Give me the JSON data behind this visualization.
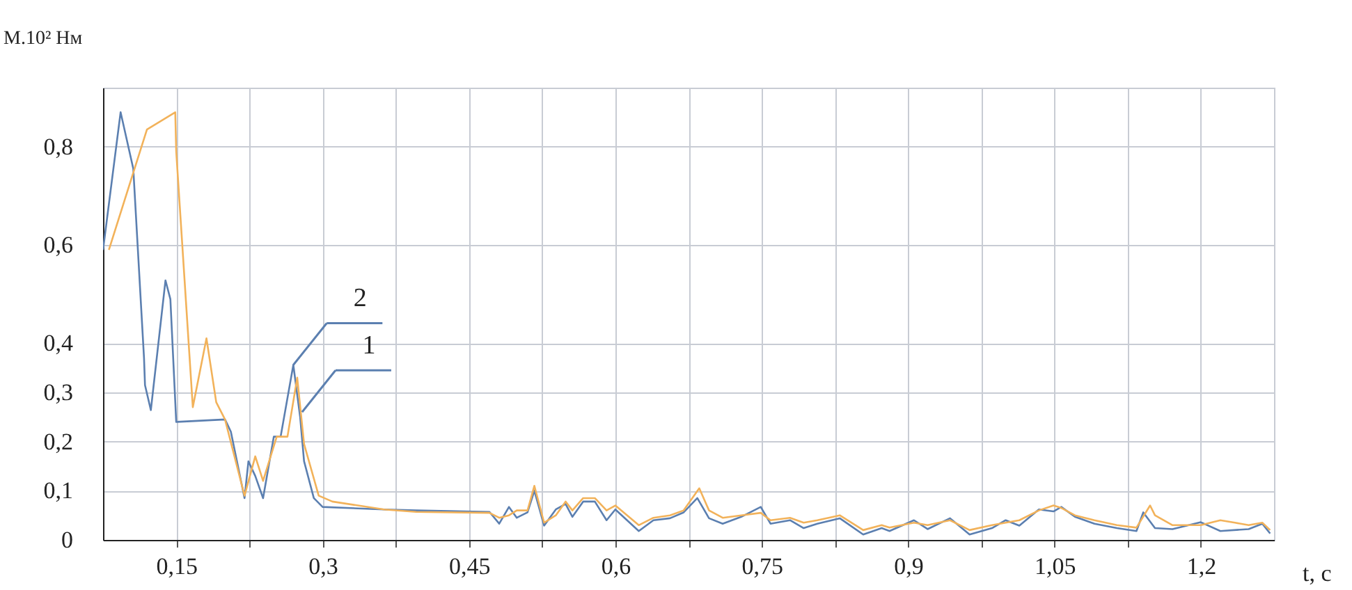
{
  "chart_data": {
    "type": "line",
    "xlabel": "t, c",
    "ylabel": "M.10² Нм",
    "xlim": [
      0.075,
      1.275
    ],
    "ylim": [
      0,
      0.92
    ],
    "xticks": [
      {
        "value": 0.15,
        "label": "0,15"
      },
      {
        "value": 0.225,
        "label": null
      },
      {
        "value": 0.3,
        "label": "0,3"
      },
      {
        "value": 0.375,
        "label": null
      },
      {
        "value": 0.45,
        "label": "0,45"
      },
      {
        "value": 0.525,
        "label": null
      },
      {
        "value": 0.6,
        "label": "0,6"
      },
      {
        "value": 0.675,
        "label": null
      },
      {
        "value": 0.75,
        "label": "0,75"
      },
      {
        "value": 0.825,
        "label": null
      },
      {
        "value": 0.9,
        "label": "0,9"
      },
      {
        "value": 0.975,
        "label": null
      },
      {
        "value": 1.05,
        "label": "1,05"
      },
      {
        "value": 1.125,
        "label": null
      },
      {
        "value": 1.2,
        "label": "1,2"
      }
    ],
    "yticks": [
      0,
      {
        "value": 0.1,
        "label": "0,1"
      },
      {
        "value": 0.2,
        "label": "0,2"
      },
      {
        "value": 0.3,
        "label": "0,3"
      },
      {
        "value": 0.4,
        "label": "0,4"
      },
      {
        "value": 0.6,
        "label": "0,6"
      },
      {
        "value": 0.8,
        "label": "0,8"
      }
    ],
    "grid": true,
    "line_style": "solid",
    "annotations": [
      {
        "text": "2",
        "x": 0.27,
        "y": 0.356
      },
      {
        "text": "1",
        "x": 0.279,
        "y": 0.26
      }
    ],
    "series": [
      {
        "color": "#5b7fb0",
        "x": [
          0.075,
          0.093,
          0.106,
          0.117,
          0.118,
          0.124,
          0.139,
          0.144,
          0.15,
          0.2,
          0.206,
          0.22,
          0.224,
          0.231,
          0.239,
          0.25,
          0.257,
          0.27,
          0.277,
          0.281,
          0.291,
          0.3,
          0.363,
          0.396,
          0.471,
          0.481,
          0.491,
          0.499,
          0.51,
          0.517,
          0.527,
          0.539,
          0.549,
          0.556,
          0.567,
          0.579,
          0.591,
          0.6,
          0.624,
          0.639,
          0.656,
          0.67,
          0.684,
          0.696,
          0.71,
          0.729,
          0.749,
          0.759,
          0.779,
          0.793,
          0.807,
          0.83,
          0.854,
          0.873,
          0.881,
          0.906,
          0.92,
          0.943,
          0.963,
          0.986,
          1.0,
          1.014,
          1.034,
          1.049,
          1.057,
          1.071,
          1.091,
          1.114,
          1.134,
          1.141,
          1.153,
          1.171,
          1.2,
          1.22,
          1.249,
          1.263,
          1.271
        ],
        "values": [
          0.59,
          0.87,
          0.755,
          0.37,
          0.315,
          0.264,
          0.528,
          0.49,
          0.24,
          0.245,
          0.22,
          0.085,
          0.16,
          0.13,
          0.085,
          0.21,
          0.21,
          0.356,
          0.25,
          0.16,
          0.085,
          0.067,
          0.062,
          0.06,
          0.057,
          0.033,
          0.067,
          0.045,
          0.056,
          0.1,
          0.029,
          0.062,
          0.073,
          0.047,
          0.078,
          0.078,
          0.04,
          0.062,
          0.018,
          0.04,
          0.044,
          0.056,
          0.085,
          0.044,
          0.033,
          0.047,
          0.067,
          0.033,
          0.04,
          0.024,
          0.033,
          0.044,
          0.011,
          0.024,
          0.018,
          0.04,
          0.022,
          0.044,
          0.011,
          0.024,
          0.04,
          0.029,
          0.062,
          0.058,
          0.067,
          0.047,
          0.033,
          0.024,
          0.018,
          0.056,
          0.024,
          0.022,
          0.036,
          0.018,
          0.022,
          0.033,
          0.013
        ]
      },
      {
        "color": "#f2b25a",
        "x": [
          0.081,
          0.12,
          0.149,
          0.15,
          0.167,
          0.181,
          0.191,
          0.2,
          0.22,
          0.231,
          0.239,
          0.253,
          0.264,
          0.274,
          0.281,
          0.296,
          0.31,
          0.363,
          0.396,
          0.471,
          0.481,
          0.491,
          0.499,
          0.51,
          0.517,
          0.527,
          0.539,
          0.549,
          0.556,
          0.567,
          0.579,
          0.591,
          0.6,
          0.624,
          0.639,
          0.656,
          0.67,
          0.686,
          0.696,
          0.71,
          0.729,
          0.749,
          0.759,
          0.779,
          0.793,
          0.807,
          0.83,
          0.854,
          0.873,
          0.881,
          0.906,
          0.92,
          0.943,
          0.963,
          0.986,
          1.0,
          1.014,
          1.034,
          1.049,
          1.057,
          1.071,
          1.091,
          1.114,
          1.134,
          1.148,
          1.153,
          1.171,
          1.2,
          1.22,
          1.235,
          1.249,
          1.263,
          1.271
        ],
        "values": [
          0.59,
          0.835,
          0.87,
          0.79,
          0.27,
          0.41,
          0.28,
          0.245,
          0.09,
          0.17,
          0.12,
          0.21,
          0.21,
          0.33,
          0.195,
          0.09,
          0.078,
          0.062,
          0.057,
          0.055,
          0.045,
          0.05,
          0.06,
          0.06,
          0.11,
          0.035,
          0.05,
          0.078,
          0.06,
          0.085,
          0.085,
          0.06,
          0.07,
          0.03,
          0.045,
          0.05,
          0.06,
          0.105,
          0.06,
          0.045,
          0.05,
          0.055,
          0.04,
          0.045,
          0.035,
          0.04,
          0.05,
          0.02,
          0.03,
          0.025,
          0.035,
          0.03,
          0.04,
          0.02,
          0.03,
          0.035,
          0.04,
          0.06,
          0.07,
          0.065,
          0.05,
          0.04,
          0.03,
          0.025,
          0.07,
          0.05,
          0.03,
          0.03,
          0.04,
          0.035,
          0.03,
          0.035,
          0.02
        ]
      }
    ]
  }
}
